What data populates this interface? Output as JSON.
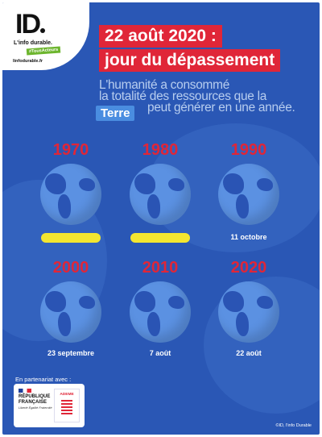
{
  "logo": {
    "mark": "ID",
    "tagline": "L'info durable.",
    "pill": "#TousActeurs",
    "site": "linfodurable.fr"
  },
  "title": {
    "line1": "22 août 2020 :",
    "line2": "jour du dépassement"
  },
  "subtitle": {
    "line1": "L'humanité a consommé",
    "line2": "la totalité des ressources que la",
    "line3": "peut générer en une année.",
    "highlight": "Terre"
  },
  "timeline": [
    {
      "year": "1970",
      "date": "",
      "bar": true
    },
    {
      "year": "1980",
      "date": "",
      "bar": true
    },
    {
      "year": "1990",
      "date": "11 octobre",
      "bar": false
    },
    {
      "year": "2000",
      "date": "23 septembre",
      "bar": false
    },
    {
      "year": "2010",
      "date": "7 août",
      "bar": false
    },
    {
      "year": "2020",
      "date": "22 août",
      "bar": false
    }
  ],
  "partners": {
    "label": "En partenariat avec :",
    "rf_line1": "RÉPUBLIQUE",
    "rf_line2": "FRANÇAISE",
    "rf_motto": "Liberté Égalité Fraternité",
    "ademe": "ADEME"
  },
  "copyright": "©ID, l'info Durable",
  "colors": {
    "background": "#2a57b5",
    "accent_red": "#e02638",
    "highlight_blue": "#4a8de0",
    "bar_yellow": "#f3e630",
    "globe_ocean": "#5b91e2",
    "globe_land": "#2a54b4"
  }
}
